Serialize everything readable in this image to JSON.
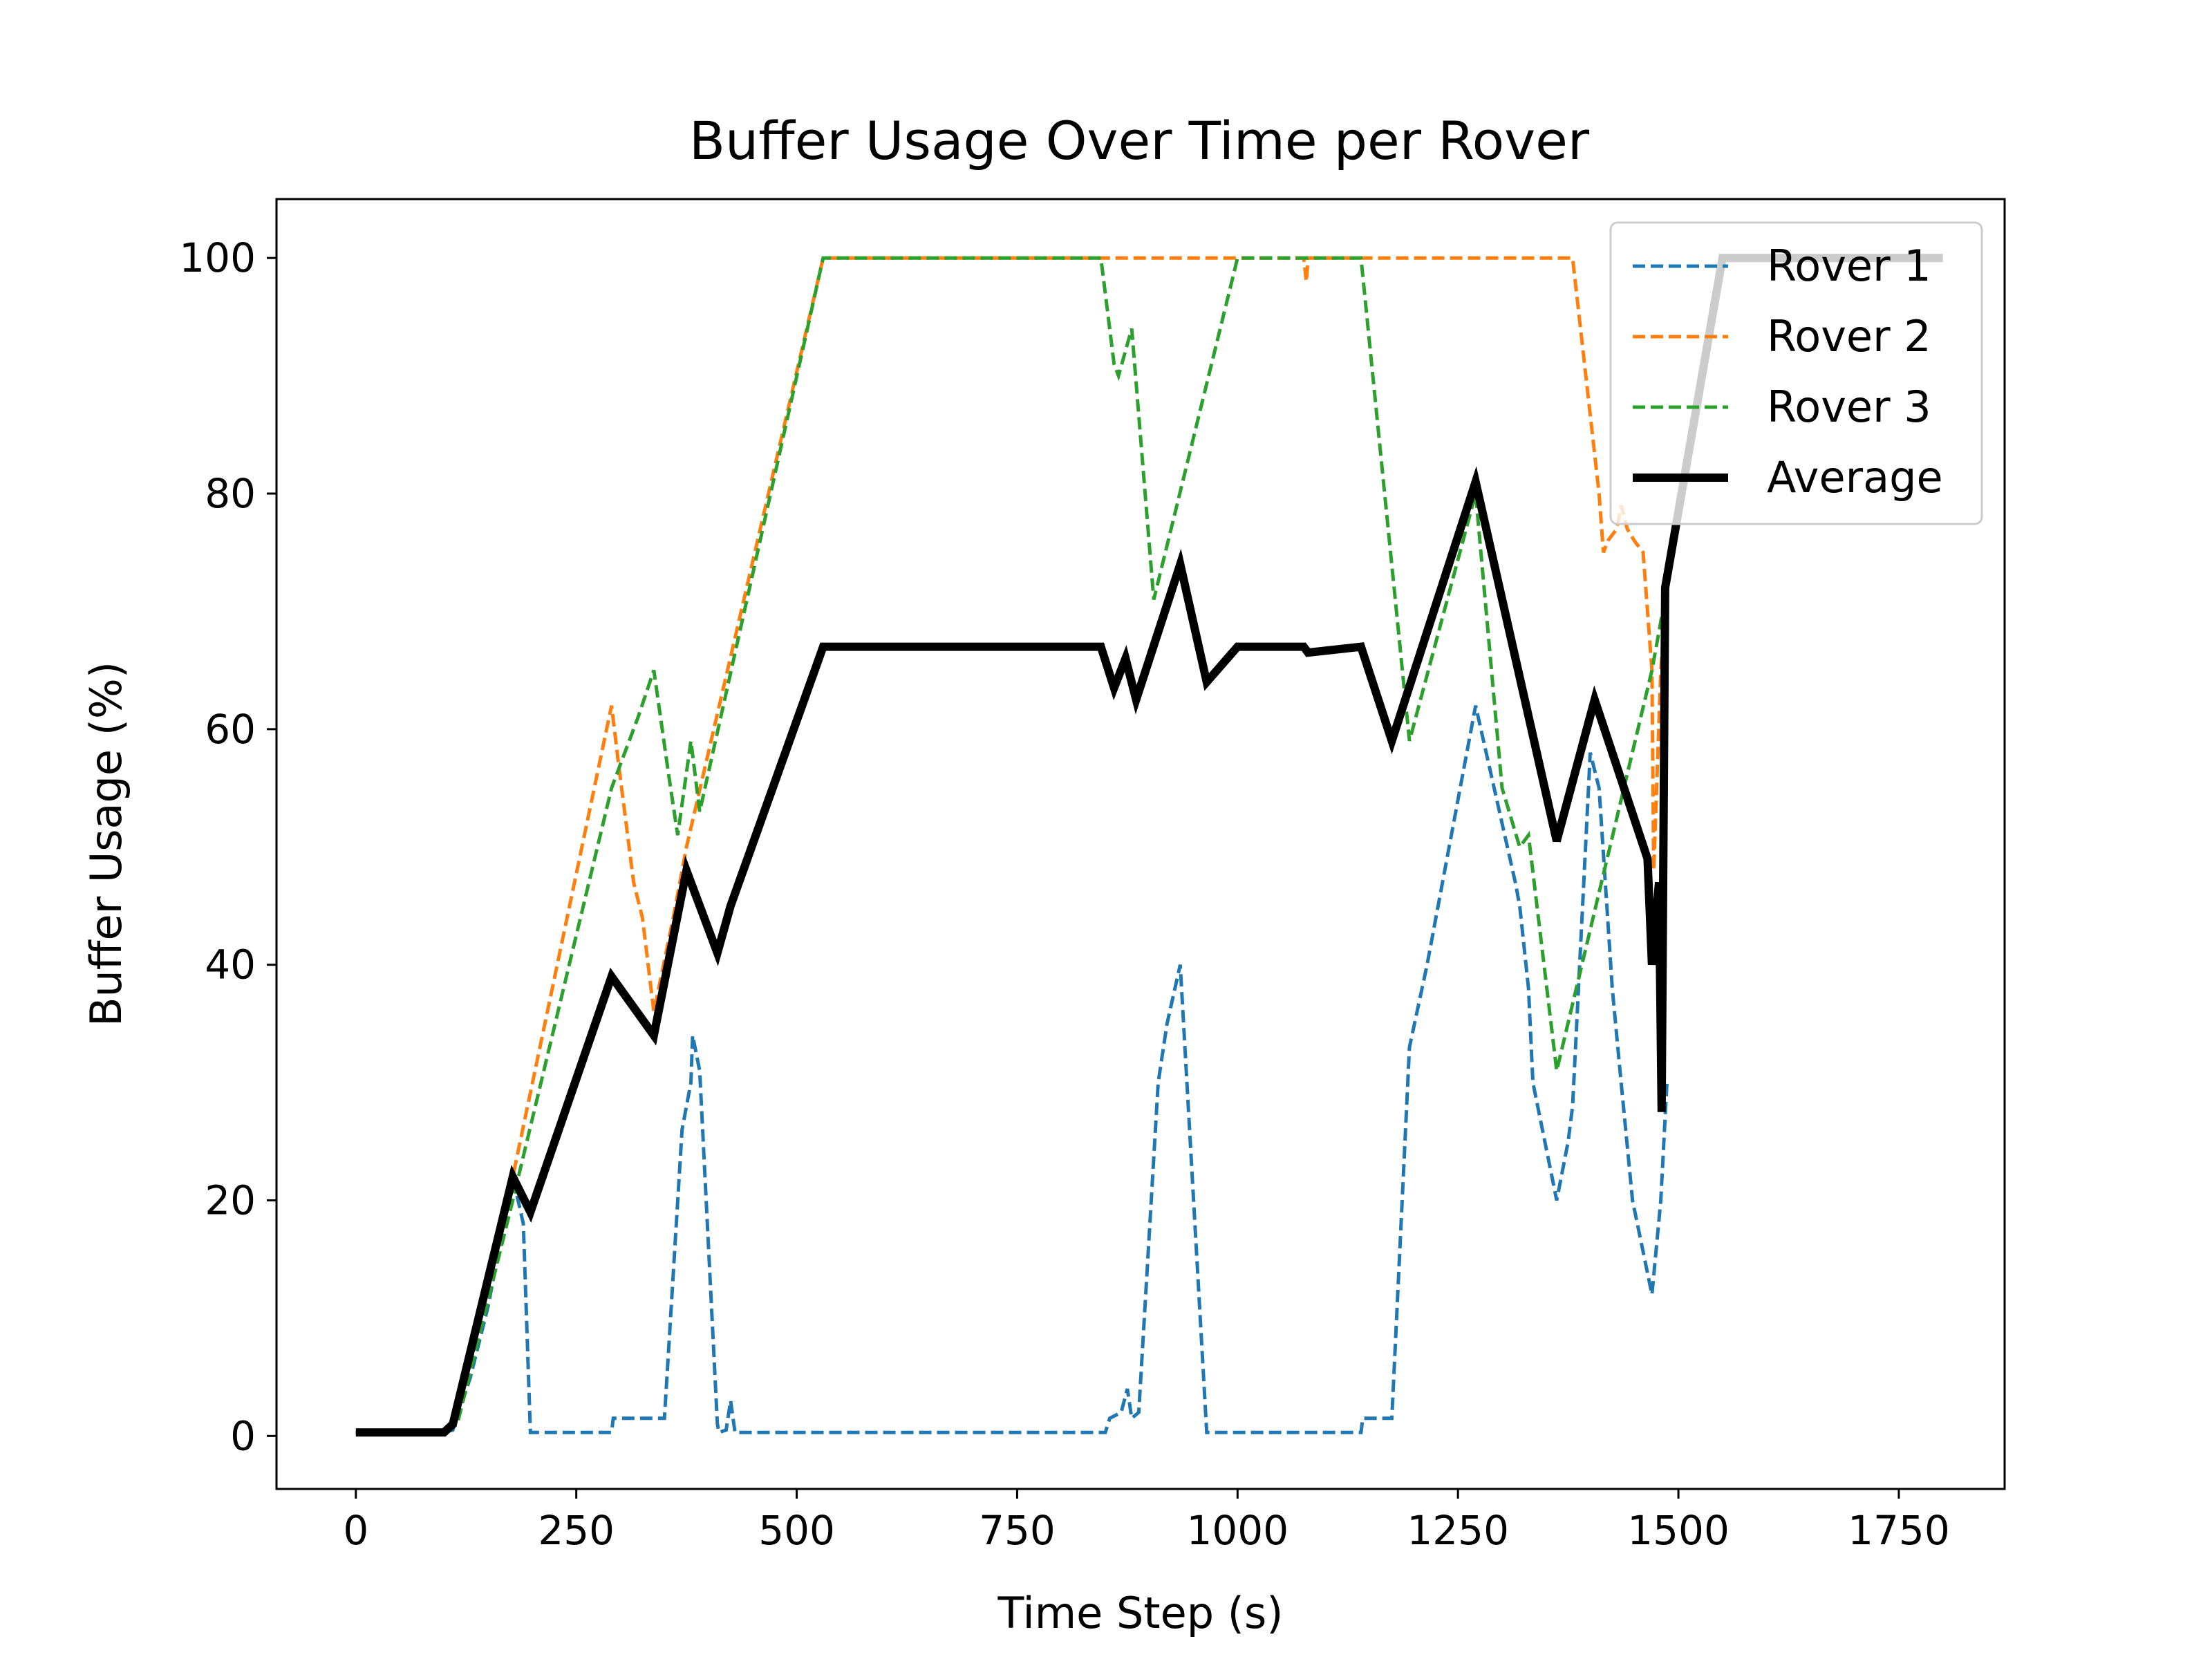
{
  "chart_data": {
    "type": "line",
    "title": "Buffer Usage Over Time per Rover",
    "xlabel": "Time Step (s)",
    "ylabel": "Buffer Usage (%)",
    "xlim": [
      -90,
      1870
    ],
    "ylim": [
      -4.5,
      105
    ],
    "xticks": [
      0,
      250,
      500,
      750,
      1000,
      1250,
      1500,
      1750
    ],
    "yticks": [
      0,
      20,
      40,
      60,
      80,
      100
    ],
    "grid": false,
    "legend_position": "top-right",
    "series": [
      {
        "name": "Rover 1",
        "color": "#1f77b4",
        "style": "dashed",
        "points": [
          [
            0,
            0.3
          ],
          [
            100,
            0.3
          ],
          [
            110,
            0.5
          ],
          [
            130,
            5
          ],
          [
            150,
            11
          ],
          [
            178,
            22
          ],
          [
            190,
            18
          ],
          [
            198,
            0.3
          ],
          [
            290,
            0.3
          ],
          [
            292,
            1.5
          ],
          [
            340,
            1.5
          ],
          [
            350,
            1.5
          ],
          [
            370,
            26
          ],
          [
            380,
            30
          ],
          [
            382,
            34
          ],
          [
            390,
            31
          ],
          [
            410,
            1
          ],
          [
            412,
            0.3
          ],
          [
            420,
            0.5
          ],
          [
            425,
            3
          ],
          [
            430,
            0.3
          ],
          [
            850,
            0.3
          ],
          [
            855,
            1.5
          ],
          [
            868,
            2
          ],
          [
            875,
            4
          ],
          [
            880,
            1.5
          ],
          [
            888,
            2
          ],
          [
            910,
            30
          ],
          [
            920,
            35
          ],
          [
            935,
            40
          ],
          [
            965,
            0.3
          ],
          [
            1140,
            0.3
          ],
          [
            1142,
            1.5
          ],
          [
            1175,
            1.5
          ],
          [
            1195,
            33
          ],
          [
            1215,
            40
          ],
          [
            1240,
            50
          ],
          [
            1270,
            62
          ],
          [
            1300,
            52
          ],
          [
            1315,
            47
          ],
          [
            1320,
            45
          ],
          [
            1330,
            38
          ],
          [
            1335,
            30
          ],
          [
            1362,
            20
          ],
          [
            1375,
            25
          ],
          [
            1380,
            28
          ],
          [
            1398,
            55
          ],
          [
            1400,
            58
          ],
          [
            1410,
            55
          ],
          [
            1425,
            38
          ],
          [
            1435,
            30
          ],
          [
            1448,
            20
          ],
          [
            1470,
            12
          ],
          [
            1480,
            20
          ],
          [
            1487,
            30
          ]
        ]
      },
      {
        "name": "Rover 2",
        "color": "#ff7f0e",
        "style": "dashed",
        "points": [
          [
            0,
            0.3
          ],
          [
            100,
            0.3
          ],
          [
            110,
            1
          ],
          [
            178,
            22
          ],
          [
            290,
            62
          ],
          [
            298,
            57
          ],
          [
            315,
            47
          ],
          [
            325,
            44
          ],
          [
            338,
            36
          ],
          [
            360,
            44
          ],
          [
            375,
            50
          ],
          [
            530,
            100
          ],
          [
            1075,
            100
          ],
          [
            1078,
            98
          ],
          [
            1080,
            100
          ],
          [
            1380,
            100
          ],
          [
            1410,
            80
          ],
          [
            1415,
            75
          ],
          [
            1420,
            76
          ],
          [
            1430,
            77
          ],
          [
            1435,
            79
          ],
          [
            1442,
            77
          ],
          [
            1450,
            76
          ],
          [
            1460,
            75
          ],
          [
            1470,
            65
          ],
          [
            1472,
            48
          ],
          [
            1480,
            65
          ],
          [
            1487,
            72
          ]
        ]
      },
      {
        "name": "Rover 3",
        "color": "#2ca02c",
        "style": "dashed",
        "points": [
          [
            0,
            0.3
          ],
          [
            100,
            0.3
          ],
          [
            115,
            1
          ],
          [
            178,
            20
          ],
          [
            290,
            55
          ],
          [
            305,
            58
          ],
          [
            320,
            61
          ],
          [
            338,
            65
          ],
          [
            355,
            56
          ],
          [
            365,
            51
          ],
          [
            380,
            59
          ],
          [
            390,
            53
          ],
          [
            530,
            100
          ],
          [
            845,
            100
          ],
          [
            860,
            91
          ],
          [
            865,
            90
          ],
          [
            880,
            94
          ],
          [
            905,
            71
          ],
          [
            1000,
            100
          ],
          [
            1140,
            100
          ],
          [
            1195,
            59
          ],
          [
            1270,
            80
          ],
          [
            1300,
            55
          ],
          [
            1320,
            50
          ],
          [
            1330,
            51
          ],
          [
            1362,
            31
          ],
          [
            1470,
            65
          ],
          [
            1487,
            72
          ]
        ]
      },
      {
        "name": "Average",
        "color": "#000000",
        "style": "solid",
        "points": [
          [
            0,
            0.3
          ],
          [
            100,
            0.3
          ],
          [
            110,
            1
          ],
          [
            178,
            22
          ],
          [
            198,
            19
          ],
          [
            290,
            39
          ],
          [
            338,
            34
          ],
          [
            375,
            48
          ],
          [
            410,
            41
          ],
          [
            425,
            45
          ],
          [
            530,
            67
          ],
          [
            845,
            67
          ],
          [
            860,
            63.5
          ],
          [
            873,
            66
          ],
          [
            885,
            62.5
          ],
          [
            935,
            74
          ],
          [
            965,
            64
          ],
          [
            1000,
            67
          ],
          [
            1075,
            67
          ],
          [
            1080,
            66.5
          ],
          [
            1140,
            67
          ],
          [
            1175,
            59
          ],
          [
            1270,
            81
          ],
          [
            1362,
            50.5
          ],
          [
            1405,
            62.5
          ],
          [
            1465,
            49
          ],
          [
            1470,
            40
          ],
          [
            1478,
            47
          ],
          [
            1481,
            27.5
          ],
          [
            1485,
            72
          ],
          [
            1550,
            100
          ],
          [
            1800,
            100
          ]
        ]
      }
    ]
  }
}
